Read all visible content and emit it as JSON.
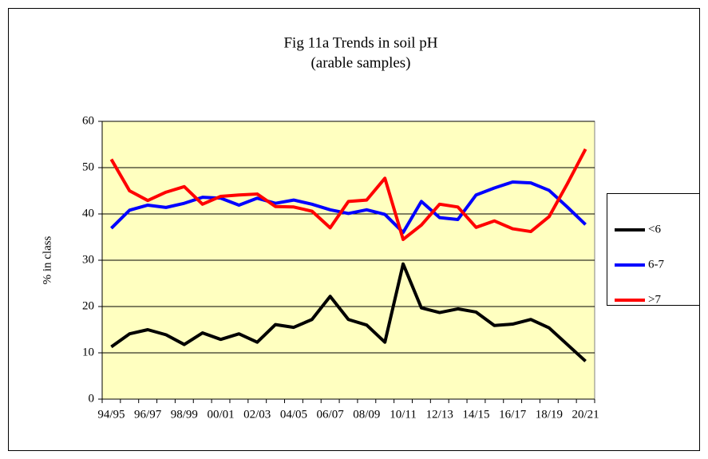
{
  "chart_data": {
    "type": "line",
    "title": "Fig 11a Trends in soil pH",
    "subtitle": "(arable samples)",
    "y_label": "% in class",
    "categories": [
      "94/95",
      null,
      "96/97",
      null,
      "98/99",
      null,
      "00/01",
      null,
      "02/03",
      null,
      "04/05",
      null,
      "06/07",
      null,
      "08/09",
      null,
      "10/11",
      null,
      "12/13",
      null,
      "14/15",
      null,
      "16/17",
      null,
      "18/19",
      null,
      "20/21"
    ],
    "series": [
      {
        "name": "<6",
        "color": "#000000",
        "values": [
          11.3,
          14.1,
          15.0,
          13.9,
          11.8,
          14.3,
          12.9,
          14.1,
          12.3,
          16.1,
          15.5,
          17.2,
          22.2,
          17.2,
          16.0,
          12.3,
          29.2,
          19.7,
          18.7,
          19.5,
          18.8,
          15.9,
          16.2,
          17.2,
          15.4,
          11.8,
          8.2
        ]
      },
      {
        "name": "6-7",
        "color": "#0000ff",
        "values": [
          36.9,
          40.8,
          41.9,
          41.4,
          42.3,
          43.6,
          43.4,
          41.9,
          43.4,
          42.3,
          43.0,
          42.1,
          40.9,
          40.1,
          40.9,
          39.9,
          36.0,
          42.7,
          39.2,
          38.8,
          44.1,
          45.6,
          46.9,
          46.7,
          45.1,
          41.5,
          37.7
        ]
      },
      {
        "name": ">7",
        "color": "#ff0000",
        "values": [
          51.8,
          45.0,
          42.9,
          44.7,
          45.9,
          42.1,
          43.8,
          44.1,
          44.3,
          41.6,
          41.5,
          40.6,
          37.0,
          42.7,
          43.0,
          47.7,
          34.5,
          37.6,
          42.1,
          41.5,
          37.1,
          38.5,
          36.8,
          36.2,
          39.4,
          46.5,
          54.0
        ]
      }
    ],
    "ylim": [
      0,
      60
    ],
    "yticks": [
      0,
      10,
      20,
      30,
      40,
      50,
      60
    ],
    "grid": true,
    "plot_background": "#ffffc0",
    "legend": "right"
  }
}
